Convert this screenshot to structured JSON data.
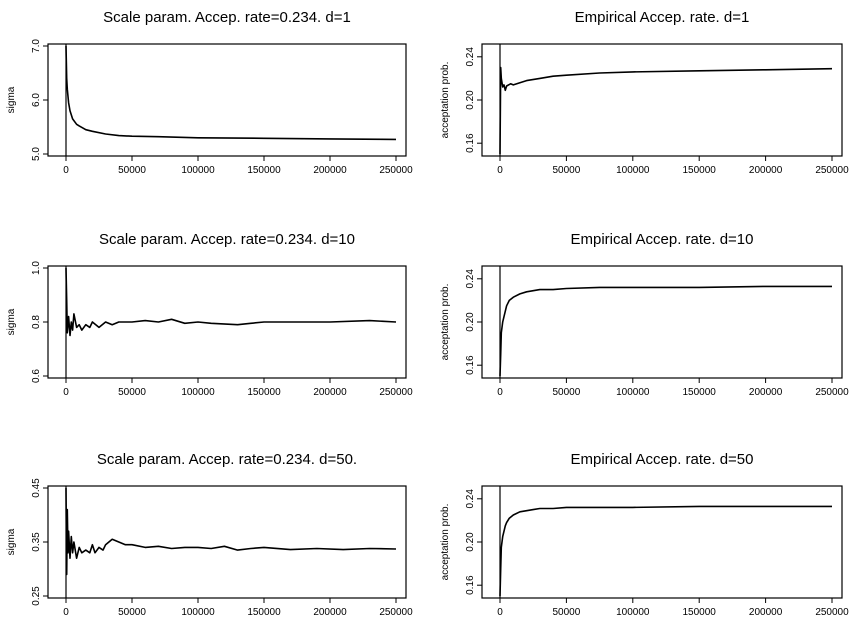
{
  "chart_data": [
    {
      "type": "line",
      "title": "Scale param. Accep. rate=0.234. d=1",
      "xlabel": "",
      "ylabel": "sigma",
      "xlim": [
        0,
        250000
      ],
      "ylim": [
        5.0,
        7.0
      ],
      "xticks": [
        0,
        50000,
        100000,
        150000,
        200000,
        250000
      ],
      "yticks": [
        5.0,
        6.0,
        7.0
      ],
      "ytick_labels": [
        "5.0",
        "6.0",
        "7.0"
      ],
      "series": [
        {
          "x": [
            0,
            500,
            1000,
            2000,
            3000,
            5000,
            8000,
            10000,
            15000,
            20000,
            30000,
            40000,
            50000,
            70000,
            100000,
            150000,
            200000,
            250000
          ],
          "y": [
            7.0,
            6.4,
            6.2,
            5.95,
            5.8,
            5.65,
            5.55,
            5.52,
            5.45,
            5.42,
            5.37,
            5.34,
            5.33,
            5.32,
            5.3,
            5.29,
            5.28,
            5.27
          ]
        }
      ]
    },
    {
      "type": "line",
      "title": "Empirical Accep. rate. d=1",
      "xlabel": "",
      "ylabel": "acceptation prob.",
      "xlim": [
        0,
        250000
      ],
      "ylim": [
        0.15,
        0.25
      ],
      "xticks": [
        0,
        50000,
        100000,
        150000,
        200000,
        250000
      ],
      "yticks": [
        0.16,
        0.2,
        0.24
      ],
      "ytick_labels": [
        "0.16",
        "0.20",
        "0.24"
      ],
      "series": [
        {
          "x": [
            0,
            500,
            1000,
            2000,
            3000,
            4000,
            5000,
            8000,
            10000,
            15000,
            20000,
            30000,
            40000,
            50000,
            75000,
            100000,
            150000,
            200000,
            250000
          ],
          "y": [
            0.15,
            0.23,
            0.22,
            0.212,
            0.214,
            0.209,
            0.213,
            0.215,
            0.214,
            0.216,
            0.218,
            0.22,
            0.222,
            0.223,
            0.225,
            0.226,
            0.227,
            0.228,
            0.229
          ]
        }
      ]
    },
    {
      "type": "line",
      "title": "Scale param. Accep. rate=0.234. d=10",
      "xlabel": "",
      "ylabel": "sigma",
      "xlim": [
        0,
        250000
      ],
      "ylim": [
        0.6,
        1.0
      ],
      "xticks": [
        0,
        50000,
        100000,
        150000,
        200000,
        250000
      ],
      "yticks": [
        0.6,
        0.8,
        1.0
      ],
      "ytick_labels": [
        "0.6",
        "0.8",
        "1.0"
      ],
      "series": [
        {
          "x": [
            0,
            500,
            1000,
            2000,
            3000,
            4000,
            5000,
            6000,
            8000,
            10000,
            12000,
            15000,
            18000,
            20000,
            25000,
            30000,
            35000,
            40000,
            50000,
            60000,
            70000,
            80000,
            90000,
            100000,
            110000,
            130000,
            140000,
            150000,
            170000,
            200000,
            230000,
            250000
          ],
          "y": [
            1.0,
            0.88,
            0.76,
            0.82,
            0.75,
            0.8,
            0.77,
            0.83,
            0.78,
            0.79,
            0.77,
            0.79,
            0.78,
            0.8,
            0.78,
            0.8,
            0.79,
            0.8,
            0.8,
            0.805,
            0.8,
            0.81,
            0.795,
            0.8,
            0.795,
            0.79,
            0.795,
            0.8,
            0.8,
            0.8,
            0.805,
            0.8
          ]
        }
      ]
    },
    {
      "type": "line",
      "title": "Empirical Accep. rate. d=10",
      "xlabel": "",
      "ylabel": "acceptation prob.",
      "xlim": [
        0,
        250000
      ],
      "ylim": [
        0.15,
        0.25
      ],
      "xticks": [
        0,
        50000,
        100000,
        150000,
        200000,
        250000
      ],
      "yticks": [
        0.16,
        0.2,
        0.24
      ],
      "ytick_labels": [
        "0.16",
        "0.20",
        "0.24"
      ],
      "series": [
        {
          "x": [
            0,
            500,
            1000,
            2000,
            3000,
            4000,
            5000,
            7000,
            10000,
            15000,
            20000,
            25000,
            30000,
            40000,
            50000,
            75000,
            100000,
            150000,
            200000,
            250000
          ],
          "y": [
            0.15,
            0.17,
            0.19,
            0.2,
            0.205,
            0.21,
            0.215,
            0.22,
            0.223,
            0.226,
            0.228,
            0.229,
            0.23,
            0.23,
            0.231,
            0.232,
            0.232,
            0.232,
            0.233,
            0.233
          ]
        }
      ]
    },
    {
      "type": "line",
      "title": "Scale param. Accep. rate=0.234. d=50.",
      "xlabel": "",
      "ylabel": "sigma",
      "xlim": [
        0,
        250000
      ],
      "ylim": [
        0.25,
        0.45
      ],
      "xticks": [
        0,
        50000,
        100000,
        150000,
        200000,
        250000
      ],
      "yticks": [
        0.25,
        0.35,
        0.45
      ],
      "ytick_labels": [
        "0.25",
        "0.35",
        "0.45"
      ],
      "series": [
        {
          "x": [
            0,
            500,
            1000,
            1500,
            2000,
            3000,
            4000,
            5000,
            6000,
            8000,
            10000,
            12000,
            15000,
            18000,
            20000,
            22000,
            25000,
            28000,
            30000,
            35000,
            40000,
            45000,
            50000,
            60000,
            70000,
            80000,
            90000,
            100000,
            110000,
            120000,
            130000,
            140000,
            150000,
            170000,
            190000,
            210000,
            230000,
            250000
          ],
          "y": [
            0.45,
            0.29,
            0.41,
            0.33,
            0.37,
            0.32,
            0.36,
            0.33,
            0.35,
            0.32,
            0.34,
            0.33,
            0.335,
            0.33,
            0.345,
            0.33,
            0.34,
            0.335,
            0.345,
            0.355,
            0.35,
            0.345,
            0.345,
            0.34,
            0.342,
            0.338,
            0.34,
            0.34,
            0.338,
            0.342,
            0.335,
            0.338,
            0.34,
            0.336,
            0.338,
            0.336,
            0.338,
            0.337
          ]
        }
      ]
    },
    {
      "type": "line",
      "title": "Empirical Accep. rate. d=50",
      "xlabel": "",
      "ylabel": "acceptation prob.",
      "xlim": [
        0,
        250000
      ],
      "ylim": [
        0.15,
        0.25
      ],
      "xticks": [
        0,
        50000,
        100000,
        150000,
        200000,
        250000
      ],
      "yticks": [
        0.16,
        0.2,
        0.24
      ],
      "ytick_labels": [
        "0.16",
        "0.20",
        "0.24"
      ],
      "series": [
        {
          "x": [
            0,
            500,
            1000,
            2000,
            3000,
            4000,
            5000,
            7000,
            10000,
            15000,
            20000,
            25000,
            30000,
            40000,
            50000,
            75000,
            100000,
            150000,
            200000,
            250000
          ],
          "y": [
            0.15,
            0.175,
            0.195,
            0.205,
            0.21,
            0.215,
            0.218,
            0.222,
            0.225,
            0.228,
            0.229,
            0.23,
            0.231,
            0.231,
            0.232,
            0.232,
            0.232,
            0.233,
            0.233,
            0.233
          ]
        }
      ]
    }
  ]
}
